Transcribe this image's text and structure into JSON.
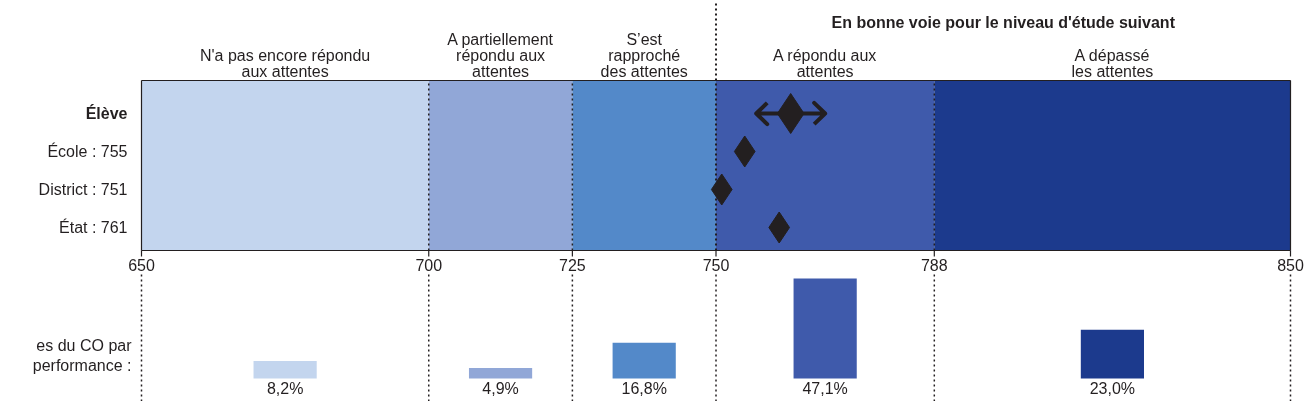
{
  "chart_data": [
    {
      "type": "scatter",
      "orientation": "horizontal",
      "categories": [
        "Élève",
        "École : 755",
        "District : 751",
        "État : 761"
      ],
      "values": [
        763,
        755,
        751,
        761
      ],
      "errors": [
        [
          757,
          769
        ],
        null,
        null,
        null
      ],
      "sizes": [
        1,
        0.6,
        0.6,
        0.6
      ],
      "marker": "diamond",
      "color": "#231f20",
      "ref_lines": [
        {
          "axis": "x",
          "value": 750,
          "label": "En bonne voie pour le niveau d'étude suivant",
          "line_style": "dotted"
        }
      ],
      "xlim": [
        650,
        850
      ],
      "xticks": [
        650,
        700,
        725,
        750,
        788,
        850
      ],
      "grid": "x",
      "bands": [
        {
          "axis": "x",
          "from": 650,
          "to": 700,
          "label": "N'a pas encore répondu\naux attentes",
          "color": "#c3d5ee"
        },
        {
          "axis": "x",
          "from": 700,
          "to": 725,
          "label": "A partiellement\nrépondu aux\nattentes",
          "color": "#91a7d7"
        },
        {
          "axis": "x",
          "from": 725,
          "to": 750,
          "label": "S’est\nrapproché\ndes attentes",
          "color": "#5389c9"
        },
        {
          "axis": "x",
          "from": 750,
          "to": 788,
          "label": "A répondu aux\nattentes",
          "color": "#3f5aab"
        },
        {
          "axis": "x",
          "from": 788,
          "to": 850,
          "label": "A dépassé\nles attentes",
          "color": "#1c3a8d"
        }
      ]
    },
    {
      "type": "bar",
      "categories": [
        null,
        null,
        null,
        null,
        null
      ],
      "values": [
        8.2,
        4.9,
        16.8,
        47.1,
        23.0
      ],
      "value_labels": [
        "8,2%",
        "4,9%",
        "16,8%",
        "47,1%",
        "23,0%"
      ],
      "colors": [
        "#c3d5ee",
        "#91a7d7",
        "#5389c9",
        "#3f5aab",
        "#1c3a8d"
      ],
      "grid": "x",
      "ylabel": "es du CO par\nperformance :"
    }
  ]
}
